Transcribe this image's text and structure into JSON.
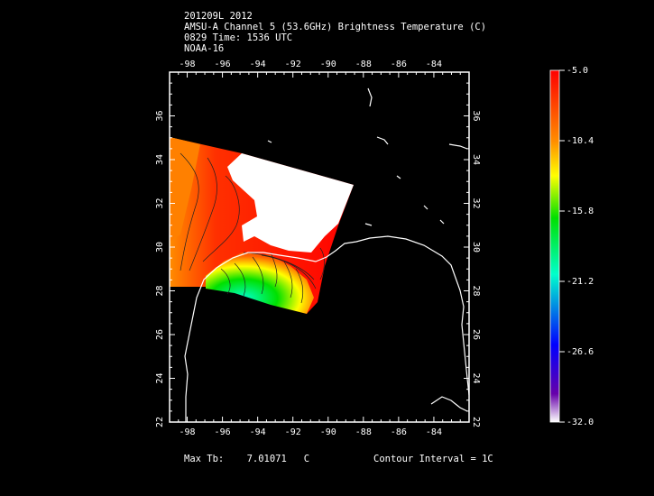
{
  "header": {
    "line1": "201209L 2012",
    "line2": "AMSU-A Channel 5 (53.6GHz) Brightness Temperature (C)",
    "line3": "0829 Time: 1536 UTC",
    "line4": "NOAA-16"
  },
  "map": {
    "lon_range": [
      -99,
      -82
    ],
    "lat_range": [
      22,
      38
    ],
    "lon_ticks": [
      "-98",
      "-96",
      "-94",
      "-92",
      "-90",
      "-88",
      "-86",
      "-84"
    ],
    "lat_ticks": [
      "22",
      "24",
      "26",
      "28",
      "30",
      "32",
      "34",
      "36"
    ],
    "lon_tick_values": [
      -98,
      -96,
      -94,
      -92,
      -90,
      -88,
      -86,
      -84
    ],
    "lat_tick_values": [
      22,
      24,
      26,
      28,
      30,
      32,
      34,
      36
    ]
  },
  "colorbar": {
    "labels": [
      "-5.0",
      "-10.4",
      "-15.8",
      "-21.2",
      "-26.6",
      "-32.0"
    ],
    "max_value": -5.0,
    "min_value": -32.0,
    "colors": [
      "#ff0000",
      "#ff8c00",
      "#ffff00",
      "#00e000",
      "#00ffcc",
      "#0000ff",
      "#6600aa",
      "#ffffff"
    ]
  },
  "footer": {
    "max_tb_label": "Max Tb:",
    "max_tb_value": "7.01071",
    "max_tb_unit": "C",
    "contour": "Contour Interval = 1C"
  }
}
